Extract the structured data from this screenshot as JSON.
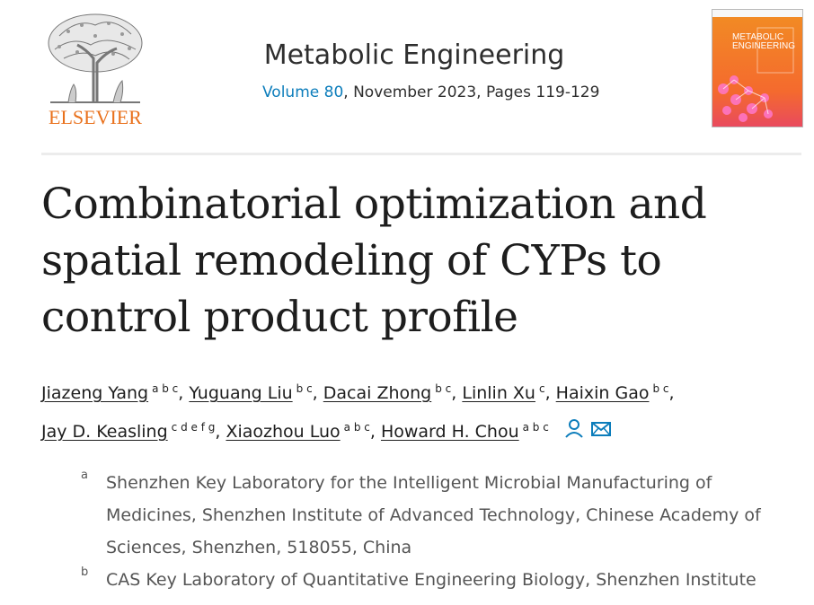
{
  "publisher": {
    "name": "ELSEVIER"
  },
  "journal": {
    "title": "Metabolic Engineering",
    "volume_label": "Volume 80",
    "issue_rest": ", November 2023, Pages 119-129",
    "cover_title_1": "METABOLIC",
    "cover_title_2": "ENGINEERING"
  },
  "paper": {
    "title": "Combinatorial optimization and spatial remodeling of CYPs to control product profile"
  },
  "authors": [
    {
      "name": "Jiazeng Yang",
      "aff": "a b c",
      "sep": ","
    },
    {
      "name": "Yuguang Liu",
      "aff": "b c",
      "sep": ","
    },
    {
      "name": "Dacai Zhong",
      "aff": "b c",
      "sep": ","
    },
    {
      "name": "Linlin Xu",
      "aff": "c",
      "sep": ","
    },
    {
      "name": "Haixin Gao",
      "aff": "b c",
      "sep": ","
    },
    {
      "name": "Jay D. Keasling",
      "aff": "c d e f g",
      "sep": ","
    },
    {
      "name": "Xiaozhou Luo",
      "aff": "a b c",
      "sep": ","
    },
    {
      "name": "Howard H. Chou",
      "aff": "a b c",
      "sep": ""
    }
  ],
  "icons": {
    "person": "person-icon",
    "mail": "mail-icon"
  },
  "colors": {
    "link": "#0c7dbb",
    "elsevier_orange": "#e9711c",
    "text": "#1d1d1d",
    "affil_text": "#555555"
  },
  "affiliations": [
    {
      "mark": "a",
      "text": "Shenzhen Key Laboratory for the Intelligent Microbial Manufacturing of Medicines, Shenzhen Institute of Advanced Technology, Chinese Academy of Sciences, Shenzhen, 518055, China"
    },
    {
      "mark": "b",
      "text": "CAS Key Laboratory of Quantitative Engineering Biology, Shenzhen Institute"
    }
  ]
}
